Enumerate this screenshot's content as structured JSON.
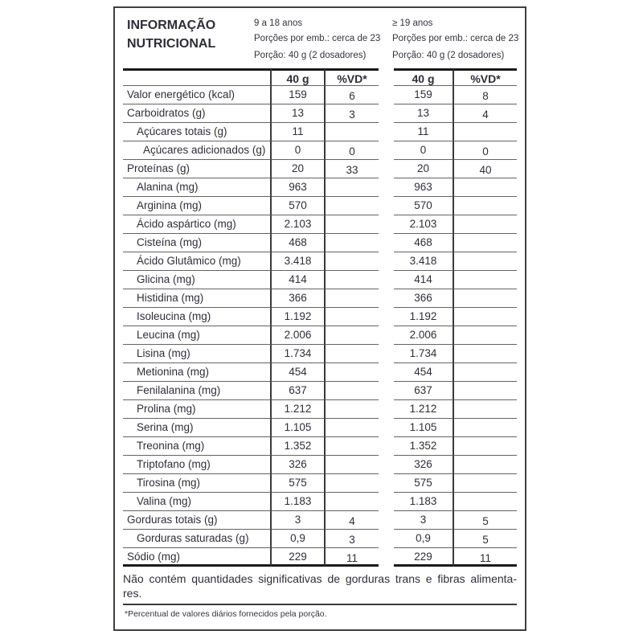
{
  "header": {
    "title_line1": "INFORMAÇÃO",
    "title_line2": "NUTRICIONAL",
    "groups": [
      {
        "age": "9 a 18 anos",
        "servings": "Porções por emb.: cerca de 23",
        "portion": "Porção: 40 g (2 dosadores)"
      },
      {
        "age": "≥ 19 anos",
        "servings": "Porções por emb.: cerca de 23",
        "portion": "Porção: 40 g (2 dosadores)"
      }
    ]
  },
  "columns": {
    "amount": "40 g",
    "dv": "%VD*"
  },
  "rows": [
    {
      "label": "Valor energético (kcal)",
      "indent": 0,
      "g1": {
        "amount": "159",
        "dv": "6"
      },
      "g2": {
        "amount": "159",
        "dv": "8"
      }
    },
    {
      "label": "Carboidratos (g)",
      "indent": 0,
      "g1": {
        "amount": "13",
        "dv": "3"
      },
      "g2": {
        "amount": "13",
        "dv": "4"
      }
    },
    {
      "label": "Açúcares totais (g)",
      "indent": 1,
      "g1": {
        "amount": "11",
        "dv": ""
      },
      "g2": {
        "amount": "11",
        "dv": ""
      }
    },
    {
      "label": "Açúcares adicionados (g)",
      "indent": 2,
      "g1": {
        "amount": "0",
        "dv": "0"
      },
      "g2": {
        "amount": "0",
        "dv": "0"
      }
    },
    {
      "label": "Proteínas (g)",
      "indent": 0,
      "g1": {
        "amount": "20",
        "dv": "33"
      },
      "g2": {
        "amount": "20",
        "dv": "40"
      }
    },
    {
      "label": "Alanina (mg)",
      "indent": 1,
      "g1": {
        "amount": "963",
        "dv": ""
      },
      "g2": {
        "amount": "963",
        "dv": ""
      }
    },
    {
      "label": "Arginina (mg)",
      "indent": 1,
      "g1": {
        "amount": "570",
        "dv": ""
      },
      "g2": {
        "amount": "570",
        "dv": ""
      }
    },
    {
      "label": "Ácido aspártico (mg)",
      "indent": 1,
      "g1": {
        "amount": "2.103",
        "dv": ""
      },
      "g2": {
        "amount": "2.103",
        "dv": ""
      }
    },
    {
      "label": "Cisteína (mg)",
      "indent": 1,
      "g1": {
        "amount": "468",
        "dv": ""
      },
      "g2": {
        "amount": "468",
        "dv": ""
      }
    },
    {
      "label": "Ácido Glutâmico (mg)",
      "indent": 1,
      "g1": {
        "amount": "3.418",
        "dv": ""
      },
      "g2": {
        "amount": "3.418",
        "dv": ""
      }
    },
    {
      "label": "Glicina (mg)",
      "indent": 1,
      "g1": {
        "amount": "414",
        "dv": ""
      },
      "g2": {
        "amount": "414",
        "dv": ""
      }
    },
    {
      "label": "Histidina (mg)",
      "indent": 1,
      "g1": {
        "amount": "366",
        "dv": ""
      },
      "g2": {
        "amount": "366",
        "dv": ""
      }
    },
    {
      "label": "Isoleucina (mg)",
      "indent": 1,
      "g1": {
        "amount": "1.192",
        "dv": ""
      },
      "g2": {
        "amount": "1.192",
        "dv": ""
      }
    },
    {
      "label": "Leucina (mg)",
      "indent": 1,
      "g1": {
        "amount": "2.006",
        "dv": ""
      },
      "g2": {
        "amount": "2.006",
        "dv": ""
      }
    },
    {
      "label": "Lisina (mg)",
      "indent": 1,
      "g1": {
        "amount": "1.734",
        "dv": ""
      },
      "g2": {
        "amount": "1.734",
        "dv": ""
      }
    },
    {
      "label": "Metionina (mg)",
      "indent": 1,
      "g1": {
        "amount": "454",
        "dv": ""
      },
      "g2": {
        "amount": "454",
        "dv": ""
      }
    },
    {
      "label": "Fenilalanina (mg)",
      "indent": 1,
      "g1": {
        "amount": "637",
        "dv": ""
      },
      "g2": {
        "amount": "637",
        "dv": ""
      }
    },
    {
      "label": "Prolina (mg)",
      "indent": 1,
      "g1": {
        "amount": "1.212",
        "dv": ""
      },
      "g2": {
        "amount": "1.212",
        "dv": ""
      }
    },
    {
      "label": "Serina (mg)",
      "indent": 1,
      "g1": {
        "amount": "1.105",
        "dv": ""
      },
      "g2": {
        "amount": "1.105",
        "dv": ""
      }
    },
    {
      "label": "Treonina (mg)",
      "indent": 1,
      "g1": {
        "amount": "1.352",
        "dv": ""
      },
      "g2": {
        "amount": "1.352",
        "dv": ""
      }
    },
    {
      "label": "Triptofano (mg)",
      "indent": 1,
      "g1": {
        "amount": "326",
        "dv": ""
      },
      "g2": {
        "amount": "326",
        "dv": ""
      }
    },
    {
      "label": "Tirosina (mg)",
      "indent": 1,
      "g1": {
        "amount": "575",
        "dv": ""
      },
      "g2": {
        "amount": "575",
        "dv": ""
      }
    },
    {
      "label": "Valina (mg)",
      "indent": 1,
      "g1": {
        "amount": "1.183",
        "dv": ""
      },
      "g2": {
        "amount": "1.183",
        "dv": ""
      }
    },
    {
      "label": "Gorduras totais (g)",
      "indent": 0,
      "g1": {
        "amount": "3",
        "dv": "4"
      },
      "g2": {
        "amount": "3",
        "dv": "5"
      }
    },
    {
      "label": "Gorduras saturadas (g)",
      "indent": 1,
      "g1": {
        "amount": "0,9",
        "dv": "3"
      },
      "g2": {
        "amount": "0,9",
        "dv": "5"
      }
    },
    {
      "label": "Sódio (mg)",
      "indent": 0,
      "g1": {
        "amount": "229",
        "dv": "11"
      },
      "g2": {
        "amount": "229",
        "dv": "11"
      }
    }
  ],
  "footer": {
    "note_line1": "Não contém quantidades significativas de gorduras trans e fibras alimenta-",
    "note_line2": "res.",
    "footnote": "*Percentual de valores diários fornecidos pela porção."
  },
  "colors": {
    "text": "#2e2e38",
    "thick_rule": "#1a1a1a",
    "thin_rule": "#636363",
    "border": "#3f3f3f"
  }
}
